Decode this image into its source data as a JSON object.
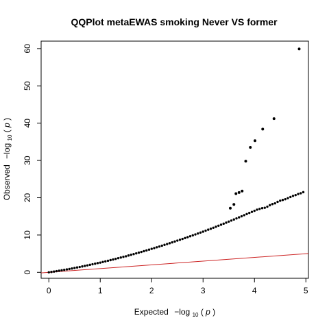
{
  "chart_data": {
    "type": "scatter",
    "title": "QQPlot metaEWAS smoking Never VS former",
    "xlabel": {
      "prefix": "Expected",
      "main": "−log",
      "sub": "10",
      "arg": "p"
    },
    "ylabel": {
      "prefix": "Observed",
      "main": "−log",
      "sub": "10",
      "arg": "p"
    },
    "xlim": [
      -0.15,
      5.05
    ],
    "ylim": [
      -1.6,
      62
    ],
    "x_ticks": [
      0,
      1,
      2,
      3,
      4,
      5
    ],
    "y_ticks": [
      0,
      10,
      20,
      30,
      40,
      50,
      60
    ],
    "grid": false,
    "point_color": "#000000",
    "reference_line": {
      "intercept": 0,
      "slope": 1,
      "color": "#cc2222"
    },
    "series": [
      {
        "points": [
          [
            0.0,
            0.0
          ],
          [
            0.05,
            0.1
          ],
          [
            0.1,
            0.2
          ],
          [
            0.15,
            0.31
          ],
          [
            0.2,
            0.42
          ],
          [
            0.25,
            0.54
          ],
          [
            0.3,
            0.66
          ],
          [
            0.35,
            0.78
          ],
          [
            0.4,
            0.9
          ],
          [
            0.45,
            1.03
          ],
          [
            0.5,
            1.16
          ],
          [
            0.55,
            1.3
          ],
          [
            0.6,
            1.43
          ],
          [
            0.65,
            1.57
          ],
          [
            0.7,
            1.72
          ],
          [
            0.75,
            1.86
          ],
          [
            0.8,
            2.01
          ],
          [
            0.85,
            2.16
          ],
          [
            0.9,
            2.31
          ],
          [
            0.95,
            2.47
          ],
          [
            1.0,
            2.6
          ],
          [
            1.05,
            2.77
          ],
          [
            1.1,
            2.93
          ],
          [
            1.15,
            3.1
          ],
          [
            1.2,
            3.27
          ],
          [
            1.25,
            3.44
          ],
          [
            1.3,
            3.61
          ],
          [
            1.35,
            3.79
          ],
          [
            1.4,
            3.97
          ],
          [
            1.45,
            4.15
          ],
          [
            1.5,
            4.3
          ],
          [
            1.55,
            4.51
          ],
          [
            1.6,
            4.7
          ],
          [
            1.65,
            4.89
          ],
          [
            1.7,
            5.08
          ],
          [
            1.75,
            5.28
          ],
          [
            1.8,
            5.47
          ],
          [
            1.85,
            5.67
          ],
          [
            1.9,
            5.87
          ],
          [
            1.95,
            6.08
          ],
          [
            2.0,
            6.3
          ],
          [
            2.05,
            6.5
          ],
          [
            2.1,
            6.71
          ],
          [
            2.15,
            6.92
          ],
          [
            2.2,
            7.14
          ],
          [
            2.25,
            7.36
          ],
          [
            2.3,
            7.58
          ],
          [
            2.35,
            7.8
          ],
          [
            2.4,
            8.03
          ],
          [
            2.45,
            8.26
          ],
          [
            2.5,
            8.5
          ],
          [
            2.55,
            8.72
          ],
          [
            2.6,
            8.96
          ],
          [
            2.65,
            9.19
          ],
          [
            2.7,
            9.43
          ],
          [
            2.75,
            9.67
          ],
          [
            2.8,
            9.92
          ],
          [
            2.85,
            10.16
          ],
          [
            2.9,
            10.41
          ],
          [
            2.95,
            10.66
          ],
          [
            3.0,
            10.9
          ],
          [
            3.05,
            11.17
          ],
          [
            3.1,
            11.43
          ],
          [
            3.15,
            11.69
          ],
          [
            3.2,
            11.95
          ],
          [
            3.25,
            12.22
          ],
          [
            3.3,
            12.5
          ],
          [
            3.35,
            12.76
          ],
          [
            3.4,
            13.04
          ],
          [
            3.45,
            13.31
          ],
          [
            3.5,
            13.6
          ],
          [
            3.55,
            13.88
          ],
          [
            3.6,
            14.16
          ],
          [
            3.65,
            14.45
          ],
          [
            3.7,
            14.74
          ],
          [
            3.75,
            15.03
          ],
          [
            3.8,
            15.33
          ],
          [
            3.85,
            15.63
          ],
          [
            3.9,
            15.92
          ],
          [
            3.95,
            16.2
          ],
          [
            4.0,
            16.5
          ],
          [
            4.05,
            16.8
          ],
          [
            4.1,
            17.0
          ],
          [
            4.15,
            17.2
          ],
          [
            4.2,
            17.3
          ],
          [
            4.25,
            17.6
          ],
          [
            4.3,
            18.0
          ],
          [
            4.35,
            18.3
          ],
          [
            4.4,
            18.5
          ],
          [
            4.45,
            18.9
          ],
          [
            4.5,
            19.2
          ],
          [
            4.55,
            19.4
          ],
          [
            4.6,
            19.6
          ],
          [
            4.65,
            19.9
          ],
          [
            4.7,
            20.2
          ],
          [
            4.75,
            20.5
          ],
          [
            4.8,
            20.7
          ],
          [
            4.85,
            21.0
          ],
          [
            4.9,
            21.2
          ],
          [
            4.95,
            21.5
          ]
        ],
        "outliers": [
          [
            3.53,
            17.2
          ],
          [
            3.6,
            18.2
          ],
          [
            3.64,
            21.1
          ],
          [
            3.7,
            21.4
          ],
          [
            3.76,
            21.8
          ],
          [
            3.83,
            29.8
          ],
          [
            3.92,
            33.5
          ],
          [
            4.01,
            35.3
          ],
          [
            4.16,
            38.4
          ],
          [
            4.38,
            41.2
          ],
          [
            4.87,
            59.9
          ]
        ]
      }
    ]
  }
}
